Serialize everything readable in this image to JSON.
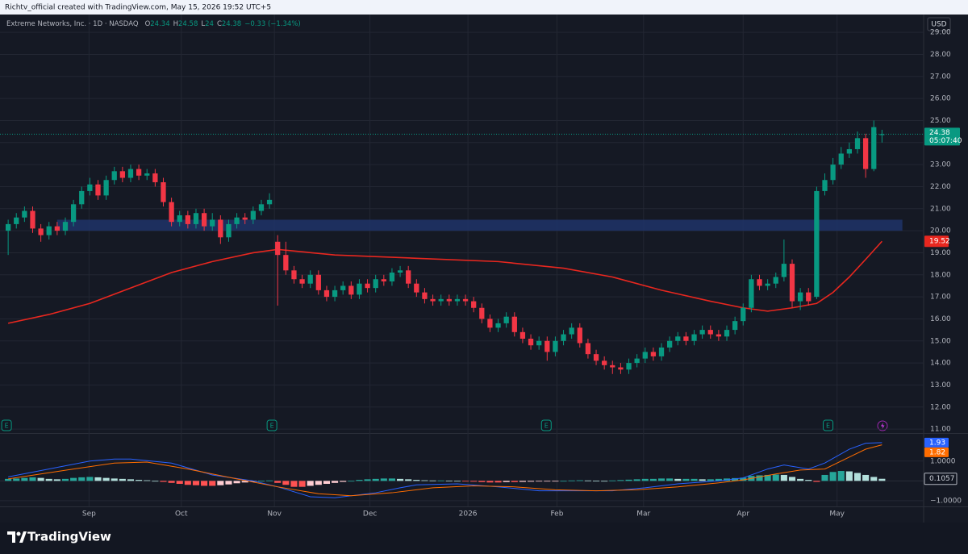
{
  "header": {
    "attribution": "Richtv_official created with TradingView.com, May 15, 2026 19:52 UTC+5",
    "brand": "TradingView"
  },
  "chart_data": [
    {
      "type": "candlestick",
      "title": "Extreme Networks, Inc. · 1D · NASDAQ",
      "currency": "USD",
      "countdown": "05:07:40",
      "legend_keys": [
        "O",
        "H",
        "L",
        "C"
      ],
      "change_label": "−0.33 (−1.34%)",
      "up_color": "#089981",
      "down_color": "#f23645",
      "grid": true,
      "xlim": [
        -1,
        112.1
      ],
      "ylim": [
        10.82,
        29.81
      ],
      "xticks": [
        {
          "value": 9.9,
          "label": "Sep"
        },
        {
          "value": 21.2,
          "label": "Oct"
        },
        {
          "value": 32.6,
          "label": "Nov"
        },
        {
          "value": 44.3,
          "label": "Dec"
        },
        {
          "value": 56.3,
          "label": "2026"
        },
        {
          "value": 67.2,
          "label": "Feb"
        },
        {
          "value": 77.8,
          "label": "Mar"
        },
        {
          "value": 90.0,
          "label": "Apr"
        },
        {
          "value": 101.5,
          "label": "May"
        }
      ],
      "yticks": [
        {
          "value": 11,
          "label": "11.00"
        },
        {
          "value": 12,
          "label": "12.00"
        },
        {
          "value": 13,
          "label": "13.00"
        },
        {
          "value": 14,
          "label": "14.00"
        },
        {
          "value": 15,
          "label": "15.00"
        },
        {
          "value": 16,
          "label": "16.00"
        },
        {
          "value": 17,
          "label": "17.00"
        },
        {
          "value": 18,
          "label": "18.00"
        },
        {
          "value": 19,
          "label": "19.00"
        },
        {
          "value": 20,
          "label": "20.00"
        },
        {
          "value": 21,
          "label": "21.00"
        },
        {
          "value": 22,
          "label": "22.00"
        },
        {
          "value": 23,
          "label": "23.00"
        },
        {
          "value": 24,
          "label": "24.00"
        },
        {
          "value": 25,
          "label": "25.00"
        },
        {
          "value": 26,
          "label": "26.00"
        },
        {
          "value": 27,
          "label": "27.00"
        },
        {
          "value": 28,
          "label": "28.00"
        },
        {
          "value": 29,
          "label": "29.00"
        }
      ],
      "open": [
        20.0,
        20.3,
        20.6,
        20.9,
        20.1,
        19.8,
        20.2,
        20.0,
        20.4,
        21.2,
        21.8,
        22.1,
        21.6,
        22.3,
        22.7,
        22.4,
        22.8,
        22.5,
        22.6,
        22.2,
        21.3,
        20.4,
        20.7,
        20.3,
        20.8,
        20.2,
        20.5,
        19.7,
        20.3,
        20.6,
        20.5,
        20.9,
        21.2,
        19.5,
        18.9,
        18.2,
        17.8,
        17.6,
        18.0,
        17.3,
        17.0,
        17.3,
        17.5,
        17.1,
        17.6,
        17.4,
        17.8,
        17.7,
        18.1,
        18.2,
        17.6,
        17.2,
        16.9,
        16.8,
        16.9,
        16.8,
        16.9,
        16.8,
        16.5,
        16.0,
        15.6,
        15.8,
        16.1,
        15.4,
        15.1,
        14.8,
        15.0,
        14.5,
        15.0,
        15.3,
        15.6,
        14.9,
        14.4,
        14.1,
        13.9,
        13.8,
        13.7,
        14.0,
        14.2,
        14.5,
        14.3,
        14.7,
        15.0,
        15.2,
        15.0,
        15.3,
        15.5,
        15.3,
        15.2,
        15.5,
        15.9,
        16.5,
        17.8,
        17.5,
        17.6,
        17.9,
        18.5,
        16.8,
        17.2,
        17.0,
        21.8,
        22.3,
        23.0,
        23.5,
        23.7,
        24.2,
        22.8,
        24.34
      ],
      "high": [
        20.5,
        20.8,
        21.1,
        21.1,
        20.3,
        20.4,
        20.4,
        20.6,
        21.4,
        22.0,
        22.4,
        22.3,
        22.5,
        22.9,
        22.9,
        23.0,
        23.0,
        22.8,
        22.8,
        22.4,
        21.5,
        20.9,
        20.9,
        21.0,
        21.0,
        20.8,
        20.7,
        20.5,
        20.8,
        20.8,
        21.1,
        21.4,
        21.7,
        19.8,
        19.5,
        18.4,
        18.0,
        18.2,
        18.2,
        17.5,
        17.5,
        17.7,
        17.7,
        17.8,
        17.8,
        18.0,
        18.0,
        18.3,
        18.4,
        18.4,
        17.8,
        17.4,
        17.1,
        17.1,
        17.1,
        17.1,
        17.1,
        17.0,
        16.7,
        16.2,
        16.0,
        16.3,
        16.3,
        15.6,
        15.3,
        15.2,
        15.2,
        15.2,
        15.5,
        15.8,
        15.8,
        15.1,
        14.6,
        14.3,
        14.1,
        14.0,
        14.2,
        14.4,
        14.7,
        14.7,
        14.9,
        15.2,
        15.4,
        15.4,
        15.5,
        15.7,
        15.7,
        15.5,
        15.7,
        16.1,
        16.7,
        18.0,
        18.0,
        17.8,
        18.1,
        19.6,
        18.7,
        17.4,
        17.4,
        22.0,
        22.6,
        23.3,
        23.8,
        24.0,
        24.5,
        24.4,
        25.0,
        24.58
      ],
      "low": [
        18.9,
        20.1,
        20.4,
        19.9,
        19.5,
        19.6,
        19.8,
        19.8,
        20.2,
        21.0,
        21.6,
        21.4,
        21.4,
        22.1,
        22.2,
        22.2,
        22.3,
        22.3,
        22.0,
        21.1,
        20.2,
        20.2,
        20.1,
        20.1,
        20.0,
        20.0,
        19.4,
        19.5,
        20.1,
        20.3,
        20.3,
        20.7,
        21.0,
        16.6,
        18.0,
        17.6,
        17.4,
        17.4,
        17.1,
        16.8,
        16.8,
        17.1,
        16.9,
        16.9,
        17.2,
        17.2,
        17.5,
        17.5,
        17.9,
        17.4,
        17.0,
        16.7,
        16.6,
        16.6,
        16.6,
        16.6,
        16.6,
        16.3,
        15.8,
        15.4,
        15.4,
        15.6,
        15.2,
        14.9,
        14.6,
        14.6,
        14.1,
        14.3,
        14.8,
        15.1,
        14.7,
        14.2,
        13.9,
        13.7,
        13.5,
        13.5,
        13.5,
        13.8,
        14.0,
        14.1,
        14.1,
        14.5,
        14.8,
        14.8,
        14.8,
        15.1,
        15.1,
        15.0,
        15.0,
        15.3,
        15.7,
        16.3,
        17.3,
        17.3,
        17.4,
        17.7,
        16.5,
        16.4,
        16.6,
        16.9,
        21.6,
        22.1,
        22.8,
        23.3,
        23.5,
        22.4,
        22.7,
        24.0
      ],
      "close": [
        20.3,
        20.6,
        20.9,
        20.1,
        19.8,
        20.2,
        20.0,
        20.4,
        21.2,
        21.8,
        22.1,
        21.6,
        22.3,
        22.7,
        22.4,
        22.8,
        22.5,
        22.6,
        22.2,
        21.3,
        20.4,
        20.7,
        20.3,
        20.8,
        20.2,
        20.5,
        19.7,
        20.3,
        20.6,
        20.5,
        20.9,
        21.2,
        21.4,
        18.9,
        18.2,
        17.8,
        17.6,
        18.0,
        17.3,
        17.0,
        17.3,
        17.5,
        17.1,
        17.6,
        17.4,
        17.8,
        17.7,
        18.1,
        18.2,
        17.6,
        17.2,
        16.9,
        16.8,
        16.9,
        16.8,
        16.9,
        16.8,
        16.5,
        16.0,
        15.6,
        15.8,
        16.1,
        15.4,
        15.1,
        14.8,
        15.0,
        14.5,
        15.0,
        15.3,
        15.6,
        14.9,
        14.4,
        14.1,
        13.9,
        13.8,
        13.7,
        14.0,
        14.2,
        14.5,
        14.3,
        14.7,
        15.0,
        15.2,
        15.0,
        15.3,
        15.5,
        15.3,
        15.2,
        15.5,
        15.9,
        16.5,
        17.8,
        17.5,
        17.6,
        17.9,
        18.5,
        16.8,
        17.2,
        16.8,
        21.8,
        22.3,
        23.0,
        23.5,
        23.7,
        24.2,
        22.8,
        24.7,
        24.38
      ],
      "moving_average": {
        "color": "#e8271f",
        "x": [
          0,
          5,
          10,
          15,
          20,
          25,
          30,
          33,
          40,
          50,
          60,
          68,
          74,
          80,
          86,
          90,
          93,
          96,
          99,
          101,
          103,
          105,
          107
        ],
        "values": [
          15.8,
          16.2,
          16.7,
          17.4,
          18.1,
          18.6,
          19.0,
          19.15,
          18.9,
          18.75,
          18.6,
          18.3,
          17.9,
          17.3,
          16.8,
          16.5,
          16.35,
          16.5,
          16.7,
          17.2,
          17.9,
          18.7,
          19.52
        ]
      },
      "zone": {
        "x0": 6,
        "x1": 109.5,
        "low": 20.0,
        "high": 20.5,
        "color": "#1f3468"
      },
      "events": {
        "label": "E",
        "x": [
          -0.2,
          32.3,
          65.9,
          100.4
        ]
      }
    },
    {
      "type": "macd",
      "xlim": [
        -1,
        112.1
      ],
      "ylim": [
        -1.29,
        2.375
      ],
      "yticks": [
        {
          "value": 1,
          "label": "1.0000"
        },
        {
          "value": -1,
          "label": "−1.0000"
        }
      ],
      "series": [
        {
          "color": "#2962ff",
          "x": [
            0,
            10,
            13,
            15,
            20,
            25,
            30,
            33,
            37,
            40,
            45,
            48,
            50,
            55,
            60,
            65,
            70,
            74,
            78,
            82,
            87,
            90,
            93,
            95,
            98,
            100,
            103,
            105,
            107
          ],
          "values": [
            0.2,
            1.0,
            1.1,
            1.1,
            0.9,
            0.3,
            0.0,
            -0.3,
            -0.8,
            -0.85,
            -0.6,
            -0.35,
            -0.2,
            -0.15,
            -0.3,
            -0.5,
            -0.5,
            -0.5,
            -0.35,
            -0.15,
            0.0,
            0.15,
            0.6,
            0.8,
            0.6,
            0.9,
            1.6,
            1.9,
            1.93
          ]
        },
        {
          "color": "#ff6d00",
          "x": [
            0,
            8,
            13,
            17,
            22,
            28,
            33,
            38,
            42,
            47,
            52,
            57,
            62,
            67,
            72,
            77,
            82,
            87,
            90,
            94,
            97,
            100,
            103,
            105,
            107
          ],
          "values": [
            0.1,
            0.6,
            0.9,
            0.95,
            0.6,
            0.1,
            -0.3,
            -0.65,
            -0.75,
            -0.6,
            -0.35,
            -0.25,
            -0.3,
            -0.45,
            -0.5,
            -0.45,
            -0.3,
            -0.1,
            0.05,
            0.35,
            0.55,
            0.6,
            1.2,
            1.6,
            1.82
          ]
        }
      ],
      "histogram_colors": [
        "#26a69a",
        "#b2dfdb",
        "#ffcdd2",
        "#ff5252"
      ],
      "histogram": [
        0.1,
        0.12,
        0.15,
        0.18,
        0.15,
        0.1,
        0.08,
        0.1,
        0.15,
        0.18,
        0.2,
        0.18,
        0.15,
        0.12,
        0.1,
        0.08,
        0.05,
        0.03,
        0.0,
        -0.05,
        -0.1,
        -0.15,
        -0.2,
        -0.22,
        -0.25,
        -0.25,
        -0.22,
        -0.18,
        -0.12,
        -0.08,
        -0.05,
        0.0,
        0.02,
        -0.1,
        -0.2,
        -0.3,
        -0.3,
        -0.25,
        -0.2,
        -0.15,
        -0.1,
        -0.05,
        0.0,
        0.05,
        0.08,
        0.1,
        0.12,
        0.12,
        0.1,
        0.08,
        0.05,
        0.03,
        0.02,
        0.02,
        0.01,
        0.0,
        -0.02,
        -0.04,
        -0.06,
        -0.08,
        -0.08,
        -0.06,
        -0.06,
        -0.05,
        -0.04,
        -0.03,
        -0.02,
        -0.01,
        0.0,
        0.02,
        0.03,
        0.02,
        0.01,
        0.0,
        0.02,
        0.04,
        0.06,
        0.08,
        0.1,
        0.1,
        0.12,
        0.12,
        0.1,
        0.1,
        0.1,
        0.08,
        0.08,
        0.1,
        0.12,
        0.14,
        0.16,
        0.25,
        0.28,
        0.3,
        0.32,
        0.3,
        0.2,
        0.1,
        0.05,
        -0.05,
        0.3,
        0.45,
        0.5,
        0.48,
        0.4,
        0.3,
        0.2,
        0.1057
      ]
    }
  ]
}
